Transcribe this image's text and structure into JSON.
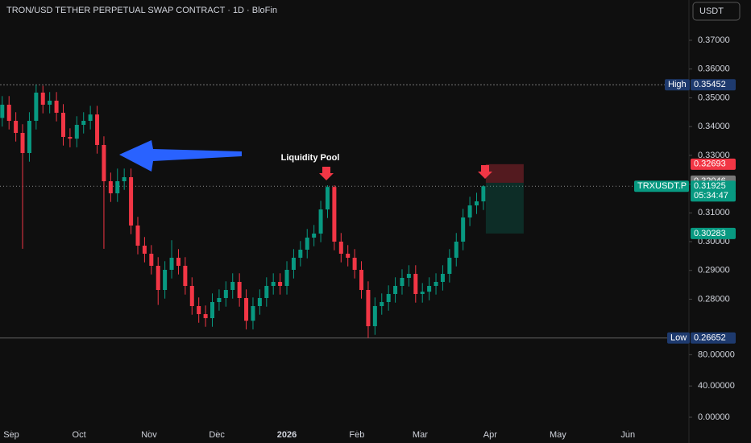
{
  "chart_data": {
    "type": "candlestick",
    "title": "TRON/USD TETHER PERPETUAL SWAP CONTRACT · 1D · BloFin",
    "currency": "USDT",
    "annotation": "Liquidity Pool",
    "x": [
      -4,
      -1,
      2,
      5,
      8,
      11,
      14,
      17,
      20,
      23,
      26,
      29,
      32,
      35,
      38,
      41,
      44,
      47,
      50,
      53,
      56,
      59,
      62,
      65,
      68,
      71,
      74,
      77,
      80,
      83,
      86,
      89,
      92,
      95,
      98,
      101,
      104,
      107,
      110,
      113,
      116,
      119,
      122,
      125,
      128,
      131,
      134,
      137,
      140,
      143,
      146,
      149,
      152,
      155,
      158,
      161,
      164,
      167,
      170,
      173,
      176,
      179,
      182,
      185,
      188,
      191,
      194,
      197,
      200,
      203,
      206,
      209
    ],
    "open": [
      0.343,
      0.3476,
      0.342,
      0.3378,
      0.3308,
      0.342,
      0.3518,
      0.3476,
      0.349,
      0.3448,
      0.3364,
      0.3358,
      0.3406,
      0.342,
      0.3442,
      0.3336,
      0.321,
      0.3168,
      0.321,
      0.3224,
      0.3056,
      0.2986,
      0.2958,
      0.2916,
      0.2832,
      0.2902,
      0.2944,
      0.2916,
      0.2846,
      0.2776,
      0.2748,
      0.2734,
      0.279,
      0.2804,
      0.2832,
      0.286,
      0.2804,
      0.2725,
      0.2776,
      0.2804,
      0.2846,
      0.286,
      0.2846,
      0.2902,
      0.2944,
      0.2972,
      0.3014,
      0.3028,
      0.3112,
      0.319,
      0.3,
      0.2958,
      0.2944,
      0.2902,
      0.2832,
      0.2706,
      0.2776,
      0.279,
      0.2818,
      0.2846,
      0.2874,
      0.2888,
      0.2818,
      0.2826,
      0.2846,
      0.286,
      0.2888,
      0.2944,
      0.3,
      0.3084,
      0.3126,
      0.314
    ],
    "high": [
      0.3506,
      0.3506,
      0.345,
      0.3408,
      0.345,
      0.35452,
      0.3542,
      0.352,
      0.352,
      0.3478,
      0.3394,
      0.3436,
      0.345,
      0.3472,
      0.3472,
      0.3366,
      0.324,
      0.3254,
      0.3254,
      0.3254,
      0.3086,
      0.3016,
      0.2988,
      0.2946,
      0.2932,
      0.3005,
      0.2974,
      0.2946,
      0.2876,
      0.2806,
      0.2778,
      0.282,
      0.2834,
      0.2862,
      0.289,
      0.289,
      0.2834,
      0.2806,
      0.2834,
      0.2876,
      0.289,
      0.289,
      0.2932,
      0.2974,
      0.3002,
      0.3044,
      0.3058,
      0.3142,
      0.3196,
      0.3196,
      0.303,
      0.2988,
      0.2974,
      0.2932,
      0.2862,
      0.2806,
      0.282,
      0.2848,
      0.2876,
      0.2904,
      0.2918,
      0.2918,
      0.2856,
      0.2876,
      0.289,
      0.2918,
      0.2974,
      0.303,
      0.3114,
      0.3156,
      0.317,
      0.3196
    ],
    "low": [
      0.34,
      0.339,
      0.3348,
      0.2975,
      0.3278,
      0.339,
      0.3446,
      0.3446,
      0.3418,
      0.3334,
      0.3328,
      0.3328,
      0.3376,
      0.339,
      0.3306,
      0.2975,
      0.3138,
      0.3138,
      0.318,
      0.3026,
      0.2956,
      0.2928,
      0.2886,
      0.278,
      0.2802,
      0.2872,
      0.2886,
      0.2816,
      0.2746,
      0.2718,
      0.2704,
      0.2704,
      0.276,
      0.2774,
      0.2802,
      0.2774,
      0.2695,
      0.2695,
      0.2746,
      0.2774,
      0.2816,
      0.2816,
      0.2816,
      0.2872,
      0.2914,
      0.2942,
      0.2984,
      0.2998,
      0.3082,
      0.297,
      0.2928,
      0.2914,
      0.2872,
      0.2802,
      0.26652,
      0.2676,
      0.2746,
      0.276,
      0.2788,
      0.2816,
      0.2844,
      0.2788,
      0.2788,
      0.2796,
      0.2816,
      0.283,
      0.2858,
      0.2914,
      0.297,
      0.3054,
      0.3096,
      0.311
    ],
    "close": [
      0.3476,
      0.342,
      0.3378,
      0.3308,
      0.342,
      0.3518,
      0.3476,
      0.349,
      0.3448,
      0.3364,
      0.3358,
      0.3406,
      0.342,
      0.3442,
      0.3336,
      0.321,
      0.3168,
      0.321,
      0.3224,
      0.3056,
      0.2986,
      0.2958,
      0.2916,
      0.2832,
      0.2902,
      0.2944,
      0.2916,
      0.2846,
      0.2776,
      0.2748,
      0.2734,
      0.279,
      0.2804,
      0.2832,
      0.286,
      0.2804,
      0.2725,
      0.2776,
      0.2804,
      0.2846,
      0.286,
      0.2846,
      0.2902,
      0.2944,
      0.2972,
      0.3014,
      0.3028,
      0.3112,
      0.319,
      0.3,
      0.2958,
      0.2944,
      0.2902,
      0.2832,
      0.2706,
      0.2776,
      0.279,
      0.2818,
      0.2846,
      0.2874,
      0.2888,
      0.2818,
      0.2826,
      0.2846,
      0.286,
      0.2888,
      0.2944,
      0.3,
      0.3084,
      0.3126,
      0.314,
      0.31925
    ],
    "up_color": "#089981",
    "down_color": "#f23645",
    "xlim": [
      -5,
      300
    ],
    "xticks": [
      {
        "value": 0,
        "label": "Sep"
      },
      {
        "value": 30,
        "label": "Oct"
      },
      {
        "value": 61,
        "label": "Nov"
      },
      {
        "value": 91,
        "label": "Dec"
      },
      {
        "value": 122,
        "label": "2026"
      },
      {
        "value": 153,
        "label": "Feb"
      },
      {
        "value": 181,
        "label": "Mar"
      },
      {
        "value": 212,
        "label": "Apr"
      },
      {
        "value": 242,
        "label": "May"
      },
      {
        "value": 273,
        "label": "Jun"
      }
    ],
    "ylim": [
      0.23,
      0.384
    ],
    "yticks": [
      {
        "value": 0.28,
        "label": "0.28000"
      },
      {
        "value": 0.29,
        "label": "0.29000"
      },
      {
        "value": 0.3,
        "label": "0.30000"
      },
      {
        "value": 0.31,
        "label": "0.31000"
      },
      {
        "value": 0.32,
        "label": "0.32000"
      },
      {
        "value": 0.33,
        "label": "0.33000"
      },
      {
        "value": 0.34,
        "label": "0.34000"
      },
      {
        "value": 0.35,
        "label": "0.35000"
      },
      {
        "value": 0.36,
        "label": "0.36000"
      },
      {
        "value": 0.37,
        "label": "0.37000"
      }
    ],
    "y2lim": [
      -33,
      534
    ],
    "y2ticks": [
      {
        "value": 0,
        "label": "0.00000"
      },
      {
        "value": 40,
        "label": "40.00000"
      },
      {
        "value": 80,
        "label": "80.00000"
      }
    ],
    "high_marker": {
      "label": "High",
      "value": 0.35452
    },
    "low_marker": {
      "label": "Low",
      "value": 0.26652
    },
    "last_price": {
      "name": "TRXUSDT.P",
      "value": 0.31925,
      "countdown": "05:34:47"
    },
    "position": {
      "stop": 0.32693,
      "entry": 0.32046,
      "target": 0.30283
    }
  }
}
